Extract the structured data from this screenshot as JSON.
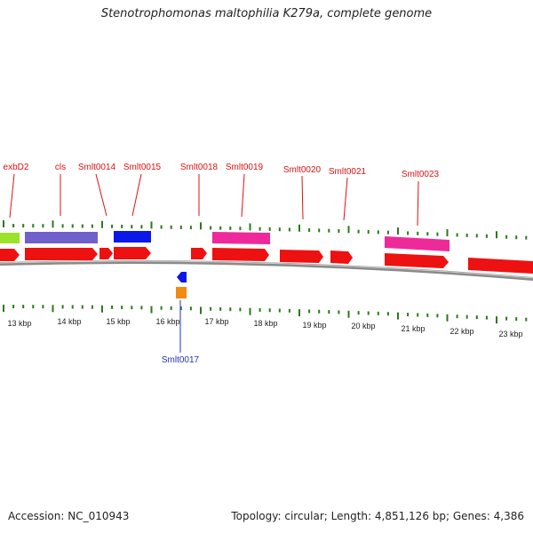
{
  "title": "Stenotrophomonas maltophilia K279a, complete genome",
  "colors": {
    "forward_gene": "#ee1111",
    "gene_label": "#dd1111",
    "reverse_label": "#2233bb",
    "tick": "#2a7a18",
    "backbone": "#8a8a8a"
  },
  "gene_labels_top": [
    "exbD2",
    "cls",
    "Smlt0014",
    "Smlt0015",
    "Smlt0018",
    "Smlt0019",
    "Smlt0020",
    "Smlt0021",
    "Smlt0023"
  ],
  "gene_label_bottom": "Smlt0017",
  "scale_ticks": [
    "13 kbp",
    "14 kbp",
    "15 kbp",
    "16 kbp",
    "17 kbp",
    "18 kbp",
    "19 kbp",
    "20 kbp",
    "21 kbp",
    "22 kbp",
    "23 kbp"
  ],
  "footer": {
    "accession": "Accession: NC_010943",
    "summary": "Topology: circular; Length: 4,851,126 bp; Genes: 4,386"
  }
}
